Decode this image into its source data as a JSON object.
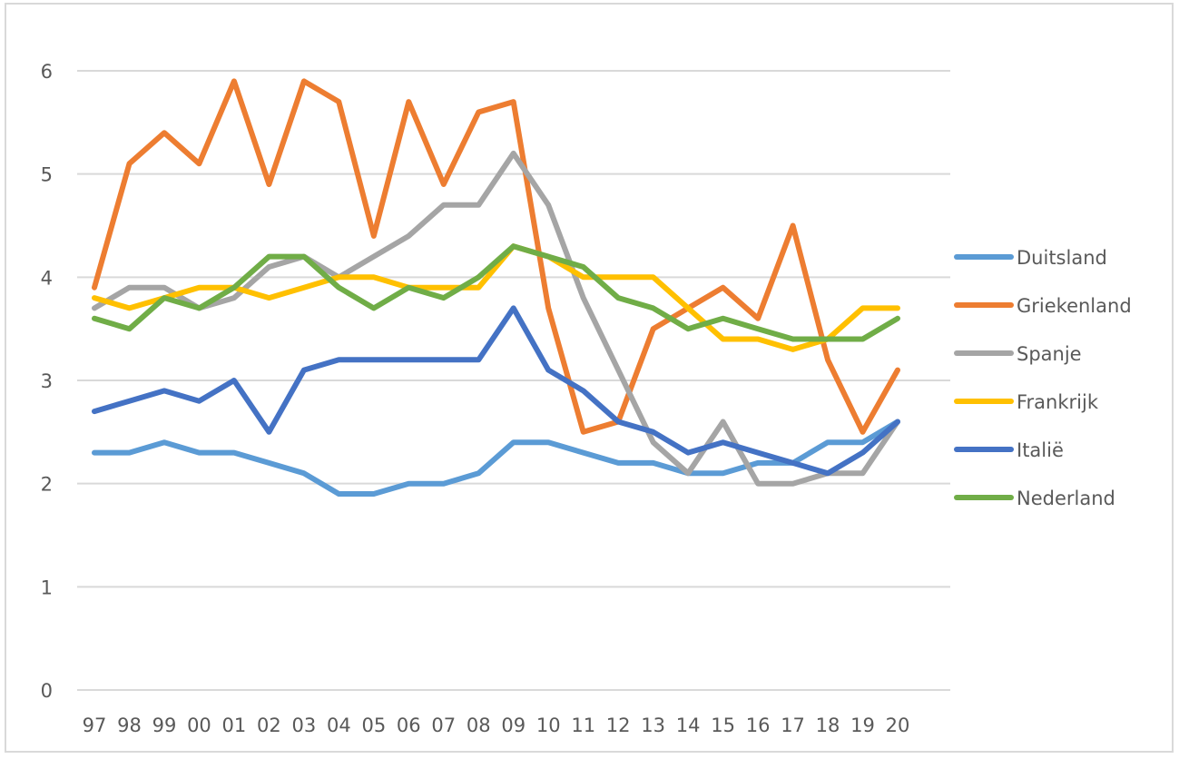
{
  "chart_data": {
    "type": "line",
    "title": "",
    "xlabel": "",
    "ylabel": "",
    "ylim": [
      0,
      6
    ],
    "yticks": [
      0,
      1,
      2,
      3,
      4,
      5,
      6
    ],
    "grid": true,
    "legend_position": "right",
    "categories": [
      "97",
      "98",
      "99",
      "00",
      "01",
      "02",
      "03",
      "04",
      "05",
      "06",
      "07",
      "08",
      "09",
      "10",
      "11",
      "12",
      "13",
      "14",
      "15",
      "16",
      "17",
      "18",
      "19",
      "20"
    ],
    "series": [
      {
        "name": "Duitsland",
        "color": "#5b9bd5",
        "values": [
          2.3,
          2.3,
          2.4,
          2.3,
          2.3,
          2.2,
          2.1,
          1.9,
          1.9,
          2.0,
          2.0,
          2.1,
          2.4,
          2.4,
          2.3,
          2.2,
          2.2,
          2.1,
          2.1,
          2.2,
          2.2,
          2.4,
          2.4,
          2.6
        ]
      },
      {
        "name": "Griekenland",
        "color": "#ed7d31",
        "values": [
          3.9,
          5.1,
          5.4,
          5.1,
          5.9,
          4.9,
          5.9,
          5.7,
          4.4,
          5.7,
          4.9,
          5.6,
          5.7,
          3.7,
          2.5,
          2.6,
          3.5,
          3.7,
          3.9,
          3.6,
          4.5,
          3.2,
          2.5,
          3.1
        ]
      },
      {
        "name": "Spanje",
        "color": "#a5a5a5",
        "values": [
          3.7,
          3.9,
          3.9,
          3.7,
          3.8,
          4.1,
          4.2,
          4.0,
          4.2,
          4.4,
          4.7,
          4.7,
          5.2,
          4.7,
          3.8,
          3.1,
          2.4,
          2.1,
          2.6,
          2.0,
          2.0,
          2.1,
          2.1,
          2.6
        ]
      },
      {
        "name": "Frankrijk",
        "color": "#ffc000",
        "values": [
          3.8,
          3.7,
          3.8,
          3.9,
          3.9,
          3.8,
          3.9,
          4.0,
          4.0,
          3.9,
          3.9,
          3.9,
          4.3,
          4.2,
          4.0,
          4.0,
          4.0,
          3.7,
          3.4,
          3.4,
          3.3,
          3.4,
          3.7,
          3.7
        ]
      },
      {
        "name": "Italië",
        "color": "#4472c4",
        "values": [
          2.7,
          2.8,
          2.9,
          2.8,
          3.0,
          2.5,
          3.1,
          3.2,
          3.2,
          3.2,
          3.2,
          3.2,
          3.7,
          3.1,
          2.9,
          2.6,
          2.5,
          2.3,
          2.4,
          2.3,
          2.2,
          2.1,
          2.3,
          2.6
        ]
      },
      {
        "name": "Nederland",
        "color": "#70ad47",
        "values": [
          3.6,
          3.5,
          3.8,
          3.7,
          3.9,
          4.2,
          4.2,
          3.9,
          3.7,
          3.9,
          3.8,
          4.0,
          4.3,
          4.2,
          4.1,
          3.8,
          3.7,
          3.5,
          3.6,
          3.5,
          3.4,
          3.4,
          3.4,
          3.6
        ]
      }
    ]
  }
}
